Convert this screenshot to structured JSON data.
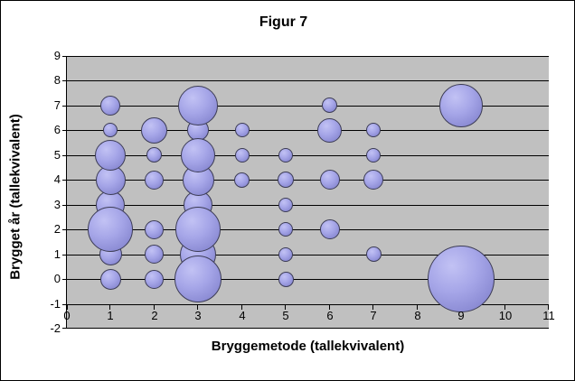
{
  "chart_data": {
    "type": "bubble",
    "title": "Figur 7",
    "xlabel": "Bryggemetode (tallekvivalent)",
    "ylabel": "Brygget år (tallekvivalent)",
    "xlim": [
      0,
      11
    ],
    "ylim": [
      -2,
      9
    ],
    "x_ticks": [
      0,
      1,
      2,
      3,
      4,
      5,
      6,
      7,
      8,
      9,
      10,
      11
    ],
    "y_ticks": [
      -2,
      -1,
      0,
      1,
      2,
      3,
      4,
      5,
      6,
      7,
      8,
      9
    ],
    "x_axis_position_y": -1,
    "grid": "horizontal",
    "legend": "none",
    "plot_bg_color": "#c0c0c0",
    "gridline_color": "#000000",
    "bubble_fill_color": "#9c9ce4",
    "bubble_highlight_color": "#c2c2f4",
    "bubble_edge_color": "#3c3c55",
    "bubbles": [
      {
        "x": 1,
        "y": 7,
        "r": 11
      },
      {
        "x": 1,
        "y": 6,
        "r": 8
      },
      {
        "x": 1,
        "y": 5,
        "r": 17
      },
      {
        "x": 1,
        "y": 4,
        "r": 16.5
      },
      {
        "x": 1,
        "y": 3,
        "r": 16
      },
      {
        "x": 1,
        "y": 2,
        "r": 25
      },
      {
        "x": 1,
        "y": 1,
        "r": 12.5
      },
      {
        "x": 1,
        "y": 0,
        "r": 11.5
      },
      {
        "x": 2,
        "y": 6,
        "r": 14.5
      },
      {
        "x": 2,
        "y": 5,
        "r": 8.5
      },
      {
        "x": 2,
        "y": 4,
        "r": 10.5
      },
      {
        "x": 2,
        "y": 2,
        "r": 10.5
      },
      {
        "x": 2,
        "y": 1,
        "r": 10.5
      },
      {
        "x": 2,
        "y": 0,
        "r": 10.5
      },
      {
        "x": 3,
        "y": 7,
        "r": 22
      },
      {
        "x": 3,
        "y": 6,
        "r": 12
      },
      {
        "x": 3,
        "y": 5,
        "r": 19
      },
      {
        "x": 3,
        "y": 4,
        "r": 17.5
      },
      {
        "x": 3,
        "y": 3,
        "r": 16
      },
      {
        "x": 3,
        "y": 2,
        "r": 25
      },
      {
        "x": 3,
        "y": 1,
        "r": 20
      },
      {
        "x": 3,
        "y": 0,
        "r": 26
      },
      {
        "x": 4,
        "y": 6,
        "r": 8
      },
      {
        "x": 4,
        "y": 5,
        "r": 8
      },
      {
        "x": 4,
        "y": 4,
        "r": 8.5
      },
      {
        "x": 5,
        "y": 5,
        "r": 8
      },
      {
        "x": 5,
        "y": 4,
        "r": 9
      },
      {
        "x": 5,
        "y": 3,
        "r": 8
      },
      {
        "x": 5,
        "y": 2,
        "r": 8
      },
      {
        "x": 5,
        "y": 1,
        "r": 8
      },
      {
        "x": 5,
        "y": 0,
        "r": 8.5
      },
      {
        "x": 6,
        "y": 7,
        "r": 8.5
      },
      {
        "x": 6,
        "y": 6,
        "r": 13.5
      },
      {
        "x": 6,
        "y": 4,
        "r": 11
      },
      {
        "x": 6,
        "y": 2,
        "r": 11
      },
      {
        "x": 7,
        "y": 6,
        "r": 8
      },
      {
        "x": 7,
        "y": 5,
        "r": 8
      },
      {
        "x": 7,
        "y": 4,
        "r": 11
      },
      {
        "x": 7,
        "y": 1,
        "r": 8.5
      },
      {
        "x": 9,
        "y": 7,
        "r": 24
      },
      {
        "x": 9,
        "y": 0,
        "r": 37
      }
    ]
  }
}
